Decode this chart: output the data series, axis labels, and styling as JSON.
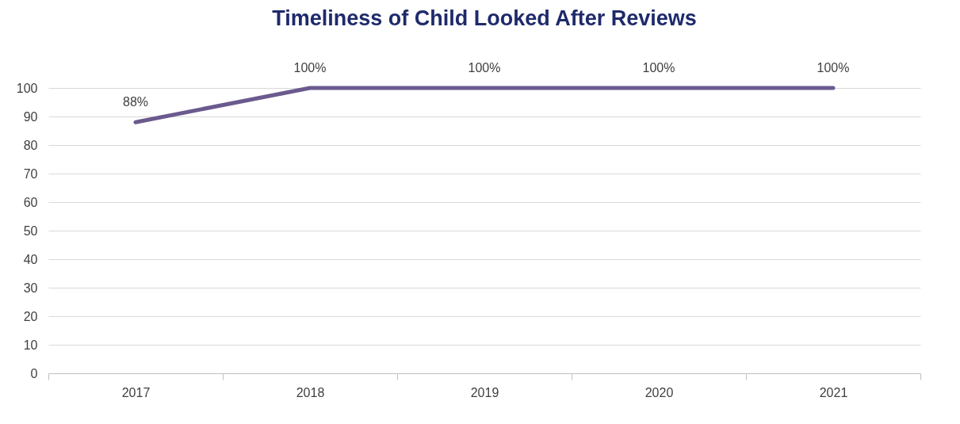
{
  "chart_data": {
    "type": "line",
    "title": "Timeliness of Child Looked After Reviews",
    "categories": [
      "2017",
      "2018",
      "2019",
      "2020",
      "2021"
    ],
    "series": [
      {
        "color": "#6b5a8e",
        "values": [
          88,
          100,
          100,
          100,
          100
        ],
        "value_labels": [
          "88%",
          "100%",
          "100%",
          "100%",
          "100%"
        ]
      }
    ],
    "ylim": [
      0,
      100
    ],
    "yticks": [
      0,
      10,
      20,
      30,
      40,
      50,
      60,
      70,
      80,
      90,
      100
    ],
    "grid": "y",
    "marker": "none",
    "line_style": "solid"
  }
}
